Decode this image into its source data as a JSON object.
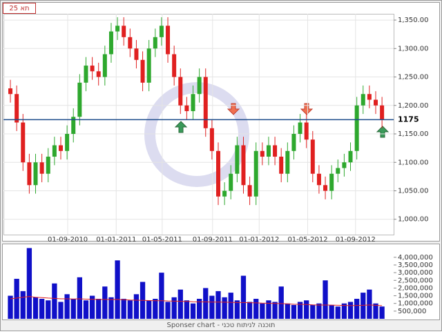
{
  "chart_data": {
    "type": "candlestick",
    "title": "תא 25",
    "footer": "Sponser chart - תוכנה לניתוח טכני",
    "xlim": [
      -1.1,
      60.85
    ],
    "xticks": [
      {
        "value": 9.1,
        "label": "01-09-2010"
      },
      {
        "value": 16.8,
        "label": "01-01-2011"
      },
      {
        "value": 24.1,
        "label": "01-05-2011"
      },
      {
        "value": 32.1,
        "label": "01-09-2011"
      },
      {
        "value": 39.5,
        "label": "01-01-2012"
      },
      {
        "value": 47.2,
        "label": "01-05-2012"
      },
      {
        "value": 54.8,
        "label": "01-09-2012"
      }
    ],
    "ylim": [
      973,
      1361
    ],
    "yticks": [
      {
        "value": 1000,
        "label": "1,000.00"
      },
      {
        "value": 1050,
        "label": "1,050.00"
      },
      {
        "value": 1100,
        "label": "1,100.00"
      },
      {
        "value": 1150,
        "label": "1,150.00"
      },
      {
        "value": 1200,
        "label": "1,200.00"
      },
      {
        "value": 1250,
        "label": "1,250.00"
      },
      {
        "value": 1300,
        "label": "1,300.00"
      },
      {
        "value": 1350,
        "label": "1,350.00"
      }
    ],
    "reference_line": 1175,
    "up_color": "#2ea82e",
    "down_color": "#e02020",
    "open": [
      1230,
      1220,
      1170,
      1100,
      1060,
      1100,
      1080,
      1110,
      1130,
      1120,
      1150,
      1180,
      1240,
      1270,
      1260,
      1250,
      1290,
      1330,
      1340,
      1320,
      1300,
      1280,
      1240,
      1300,
      1320,
      1340,
      1290,
      1250,
      1200,
      1190,
      1220,
      1250,
      1160,
      1120,
      1040,
      1050,
      1080,
      1130,
      1060,
      1040,
      1120,
      1110,
      1130,
      1110,
      1080,
      1120,
      1150,
      1170,
      1140,
      1080,
      1060,
      1050,
      1080,
      1090,
      1100,
      1120,
      1200,
      1220,
      1210,
      1200
    ],
    "high": [
      1245,
      1235,
      1185,
      1115,
      1115,
      1115,
      1125,
      1145,
      1145,
      1165,
      1195,
      1255,
      1285,
      1285,
      1275,
      1305,
      1345,
      1355,
      1355,
      1335,
      1315,
      1295,
      1315,
      1335,
      1355,
      1355,
      1305,
      1265,
      1215,
      1235,
      1265,
      1265,
      1175,
      1135,
      1065,
      1095,
      1145,
      1145,
      1075,
      1135,
      1135,
      1145,
      1145,
      1125,
      1135,
      1165,
      1185,
      1185,
      1155,
      1095,
      1075,
      1095,
      1105,
      1115,
      1135,
      1215,
      1235,
      1235,
      1225,
      1215
    ],
    "low": [
      1205,
      1155,
      1085,
      1045,
      1045,
      1065,
      1065,
      1095,
      1105,
      1105,
      1135,
      1165,
      1225,
      1245,
      1235,
      1235,
      1275,
      1315,
      1305,
      1285,
      1265,
      1225,
      1225,
      1285,
      1305,
      1275,
      1235,
      1185,
      1175,
      1175,
      1205,
      1145,
      1105,
      1025,
      1025,
      1035,
      1065,
      1045,
      1025,
      1025,
      1095,
      1095,
      1095,
      1065,
      1065,
      1105,
      1135,
      1125,
      1065,
      1045,
      1035,
      1035,
      1065,
      1075,
      1085,
      1105,
      1185,
      1195,
      1185,
      1160
    ],
    "close": [
      1220,
      1170,
      1100,
      1060,
      1100,
      1080,
      1110,
      1130,
      1120,
      1150,
      1180,
      1240,
      1270,
      1260,
      1250,
      1290,
      1330,
      1340,
      1320,
      1300,
      1280,
      1240,
      1300,
      1320,
      1340,
      1290,
      1250,
      1200,
      1190,
      1220,
      1250,
      1160,
      1120,
      1040,
      1050,
      1080,
      1130,
      1060,
      1040,
      1120,
      1110,
      1130,
      1110,
      1080,
      1120,
      1150,
      1170,
      1140,
      1080,
      1060,
      1050,
      1080,
      1090,
      1100,
      1120,
      1200,
      1220,
      1210,
      1200,
      1175
    ],
    "volume_ylim": [
      0,
      4800000
    ],
    "volume_yticks": [
      {
        "value": 500000,
        "label": "500,000"
      },
      {
        "value": 1000000,
        "label": "1,000,000"
      },
      {
        "value": 1500000,
        "label": "1,500,000"
      },
      {
        "value": 2000000,
        "label": "2,000,000"
      },
      {
        "value": 2500000,
        "label": "2,500,000"
      },
      {
        "value": 3000000,
        "label": "3,000,000"
      },
      {
        "value": 3500000,
        "label": "3,500,000"
      },
      {
        "value": 4000000,
        "label": "4,000,000"
      }
    ],
    "volume_color": "#1010c8",
    "volume_ma_color": "#e02020",
    "volume": [
      1500000,
      2600000,
      1800000,
      4600000,
      1400000,
      1300000,
      1200000,
      2300000,
      1100000,
      1600000,
      1300000,
      2700000,
      1200000,
      1500000,
      1300000,
      2100000,
      1400000,
      3800000,
      1300000,
      1200000,
      1600000,
      2400000,
      1200000,
      1300000,
      3000000,
      1100000,
      1400000,
      1900000,
      1200000,
      1000000,
      1300000,
      2000000,
      1500000,
      1800000,
      1400000,
      1700000,
      1200000,
      2800000,
      1100000,
      1300000,
      1000000,
      1200000,
      1100000,
      2100000,
      1000000,
      900000,
      1100000,
      1200000,
      900000,
      1000000,
      2500000,
      900000,
      800000,
      1000000,
      1100000,
      1300000,
      1700000,
      1900000,
      1000000,
      800000
    ],
    "volume_ma": [
      1300000,
      1350000,
      1400000,
      1450000,
      1400000,
      1380000,
      1350000,
      1330000,
      1300000,
      1300000,
      1290000,
      1300000,
      1280000,
      1270000,
      1260000,
      1260000,
      1250000,
      1260000,
      1240000,
      1220000,
      1210000,
      1200000,
      1190000,
      1180000,
      1180000,
      1160000,
      1150000,
      1140000,
      1130000,
      1110000,
      1100000,
      1100000,
      1090000,
      1090000,
      1080000,
      1070000,
      1060000,
      1060000,
      1050000,
      1040000,
      1020000,
      1010000,
      1000000,
      990000,
      970000,
      950000,
      940000,
      930000,
      910000,
      900000,
      900000,
      890000,
      880000,
      870000,
      860000,
      870000,
      880000,
      900000,
      880000,
      860000
    ]
  }
}
